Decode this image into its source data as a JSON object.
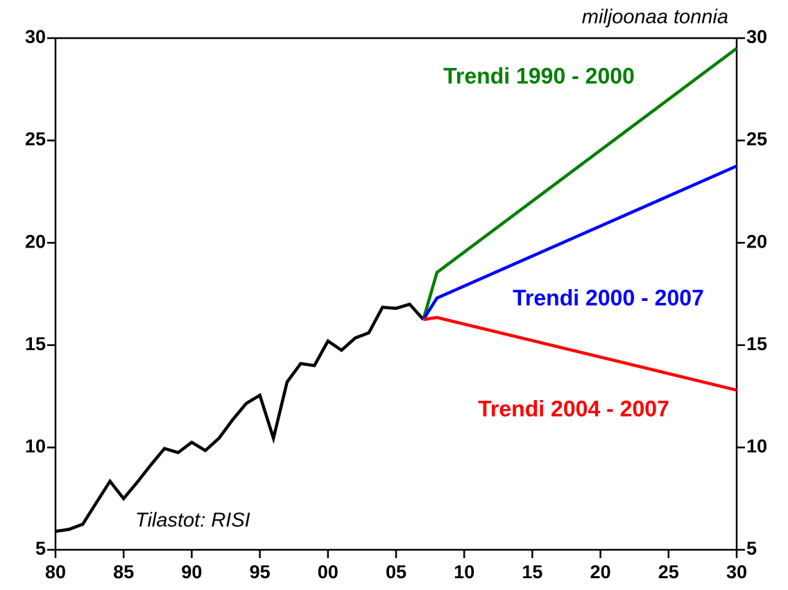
{
  "chart_data": {
    "type": "line",
    "ylabel": "miljoonaa tonnia",
    "annotations": [
      "Tilastot: RISI"
    ],
    "xlim": [
      1980,
      2030
    ],
    "xticks": [
      {
        "value": 1980,
        "label": "80"
      },
      {
        "value": 1985,
        "label": "85"
      },
      {
        "value": 1990,
        "label": "90"
      },
      {
        "value": 1995,
        "label": "95"
      },
      {
        "value": 2000,
        "label": "00"
      },
      {
        "value": 2005,
        "label": "05"
      },
      {
        "value": 2010,
        "label": "10"
      },
      {
        "value": 2015,
        "label": "15"
      },
      {
        "value": 2020,
        "label": "20"
      },
      {
        "value": 2025,
        "label": "25"
      },
      {
        "value": 2030,
        "label": "30"
      }
    ],
    "ylim": [
      5,
      30
    ],
    "yticks": [
      5,
      10,
      15,
      20,
      25,
      30
    ],
    "y2lim": [
      5,
      30
    ],
    "y2ticks": [
      5,
      10,
      15,
      20,
      25,
      30
    ],
    "series": [
      {
        "color": "#000000",
        "x": [
          1980,
          1981,
          1982,
          1983,
          1984,
          1985,
          1986,
          1987,
          1988,
          1989,
          1990,
          1991,
          1992,
          1993,
          1994,
          1995,
          1996,
          1997,
          1998,
          1999,
          2000,
          2001,
          2002,
          2003,
          2004,
          2005,
          2006,
          2007
        ],
        "values": [
          5.9,
          6.0,
          6.25,
          7.3,
          8.35,
          7.5,
          8.3,
          9.15,
          9.95,
          9.75,
          10.25,
          9.85,
          10.45,
          11.35,
          12.15,
          12.55,
          10.45,
          13.2,
          14.1,
          14.0,
          15.2,
          14.75,
          15.35,
          15.6,
          16.85,
          16.8,
          17.0,
          16.25
        ]
      },
      {
        "name": "Trendi 1990 - 2000",
        "color": "#008000",
        "x": [
          2007,
          2008,
          2030
        ],
        "values": [
          16.25,
          18.55,
          29.5
        ]
      },
      {
        "name": "Trendi 2000 - 2007",
        "color": "#0000ff",
        "x": [
          2007,
          2008,
          2030
        ],
        "values": [
          16.25,
          17.3,
          23.75
        ]
      },
      {
        "name": "Trendi 2004 - 2007",
        "color": "#ff0000",
        "x": [
          2007,
          2008,
          2030
        ],
        "values": [
          16.25,
          16.35,
          12.8
        ]
      }
    ]
  }
}
